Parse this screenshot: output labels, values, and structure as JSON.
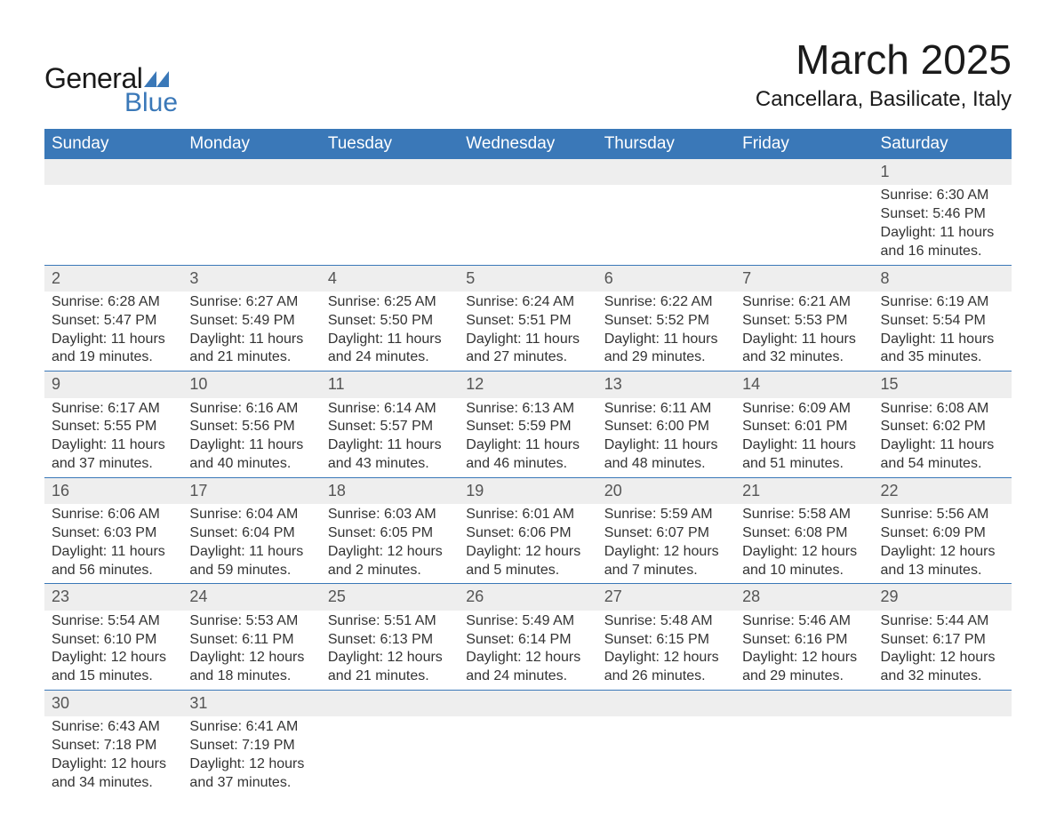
{
  "logo": {
    "general": "General",
    "blue": "Blue",
    "triangle_color": "#3a78b8"
  },
  "title": "March 2025",
  "location": "Cancellara, Basilicate, Italy",
  "colors": {
    "header_bg": "#3a78b8",
    "header_text": "#ffffff",
    "daynum_bg": "#eeeeee",
    "text": "#333333",
    "border": "#3a78b8"
  },
  "weekdays": [
    "Sunday",
    "Monday",
    "Tuesday",
    "Wednesday",
    "Thursday",
    "Friday",
    "Saturday"
  ],
  "weeks": [
    [
      null,
      null,
      null,
      null,
      null,
      null,
      {
        "n": "1",
        "sr": "Sunrise: 6:30 AM",
        "ss": "Sunset: 5:46 PM",
        "d1": "Daylight: 11 hours",
        "d2": "and 16 minutes."
      }
    ],
    [
      {
        "n": "2",
        "sr": "Sunrise: 6:28 AM",
        "ss": "Sunset: 5:47 PM",
        "d1": "Daylight: 11 hours",
        "d2": "and 19 minutes."
      },
      {
        "n": "3",
        "sr": "Sunrise: 6:27 AM",
        "ss": "Sunset: 5:49 PM",
        "d1": "Daylight: 11 hours",
        "d2": "and 21 minutes."
      },
      {
        "n": "4",
        "sr": "Sunrise: 6:25 AM",
        "ss": "Sunset: 5:50 PM",
        "d1": "Daylight: 11 hours",
        "d2": "and 24 minutes."
      },
      {
        "n": "5",
        "sr": "Sunrise: 6:24 AM",
        "ss": "Sunset: 5:51 PM",
        "d1": "Daylight: 11 hours",
        "d2": "and 27 minutes."
      },
      {
        "n": "6",
        "sr": "Sunrise: 6:22 AM",
        "ss": "Sunset: 5:52 PM",
        "d1": "Daylight: 11 hours",
        "d2": "and 29 minutes."
      },
      {
        "n": "7",
        "sr": "Sunrise: 6:21 AM",
        "ss": "Sunset: 5:53 PM",
        "d1": "Daylight: 11 hours",
        "d2": "and 32 minutes."
      },
      {
        "n": "8",
        "sr": "Sunrise: 6:19 AM",
        "ss": "Sunset: 5:54 PM",
        "d1": "Daylight: 11 hours",
        "d2": "and 35 minutes."
      }
    ],
    [
      {
        "n": "9",
        "sr": "Sunrise: 6:17 AM",
        "ss": "Sunset: 5:55 PM",
        "d1": "Daylight: 11 hours",
        "d2": "and 37 minutes."
      },
      {
        "n": "10",
        "sr": "Sunrise: 6:16 AM",
        "ss": "Sunset: 5:56 PM",
        "d1": "Daylight: 11 hours",
        "d2": "and 40 minutes."
      },
      {
        "n": "11",
        "sr": "Sunrise: 6:14 AM",
        "ss": "Sunset: 5:57 PM",
        "d1": "Daylight: 11 hours",
        "d2": "and 43 minutes."
      },
      {
        "n": "12",
        "sr": "Sunrise: 6:13 AM",
        "ss": "Sunset: 5:59 PM",
        "d1": "Daylight: 11 hours",
        "d2": "and 46 minutes."
      },
      {
        "n": "13",
        "sr": "Sunrise: 6:11 AM",
        "ss": "Sunset: 6:00 PM",
        "d1": "Daylight: 11 hours",
        "d2": "and 48 minutes."
      },
      {
        "n": "14",
        "sr": "Sunrise: 6:09 AM",
        "ss": "Sunset: 6:01 PM",
        "d1": "Daylight: 11 hours",
        "d2": "and 51 minutes."
      },
      {
        "n": "15",
        "sr": "Sunrise: 6:08 AM",
        "ss": "Sunset: 6:02 PM",
        "d1": "Daylight: 11 hours",
        "d2": "and 54 minutes."
      }
    ],
    [
      {
        "n": "16",
        "sr": "Sunrise: 6:06 AM",
        "ss": "Sunset: 6:03 PM",
        "d1": "Daylight: 11 hours",
        "d2": "and 56 minutes."
      },
      {
        "n": "17",
        "sr": "Sunrise: 6:04 AM",
        "ss": "Sunset: 6:04 PM",
        "d1": "Daylight: 11 hours",
        "d2": "and 59 minutes."
      },
      {
        "n": "18",
        "sr": "Sunrise: 6:03 AM",
        "ss": "Sunset: 6:05 PM",
        "d1": "Daylight: 12 hours",
        "d2": "and 2 minutes."
      },
      {
        "n": "19",
        "sr": "Sunrise: 6:01 AM",
        "ss": "Sunset: 6:06 PM",
        "d1": "Daylight: 12 hours",
        "d2": "and 5 minutes."
      },
      {
        "n": "20",
        "sr": "Sunrise: 5:59 AM",
        "ss": "Sunset: 6:07 PM",
        "d1": "Daylight: 12 hours",
        "d2": "and 7 minutes."
      },
      {
        "n": "21",
        "sr": "Sunrise: 5:58 AM",
        "ss": "Sunset: 6:08 PM",
        "d1": "Daylight: 12 hours",
        "d2": "and 10 minutes."
      },
      {
        "n": "22",
        "sr": "Sunrise: 5:56 AM",
        "ss": "Sunset: 6:09 PM",
        "d1": "Daylight: 12 hours",
        "d2": "and 13 minutes."
      }
    ],
    [
      {
        "n": "23",
        "sr": "Sunrise: 5:54 AM",
        "ss": "Sunset: 6:10 PM",
        "d1": "Daylight: 12 hours",
        "d2": "and 15 minutes."
      },
      {
        "n": "24",
        "sr": "Sunrise: 5:53 AM",
        "ss": "Sunset: 6:11 PM",
        "d1": "Daylight: 12 hours",
        "d2": "and 18 minutes."
      },
      {
        "n": "25",
        "sr": "Sunrise: 5:51 AM",
        "ss": "Sunset: 6:13 PM",
        "d1": "Daylight: 12 hours",
        "d2": "and 21 minutes."
      },
      {
        "n": "26",
        "sr": "Sunrise: 5:49 AM",
        "ss": "Sunset: 6:14 PM",
        "d1": "Daylight: 12 hours",
        "d2": "and 24 minutes."
      },
      {
        "n": "27",
        "sr": "Sunrise: 5:48 AM",
        "ss": "Sunset: 6:15 PM",
        "d1": "Daylight: 12 hours",
        "d2": "and 26 minutes."
      },
      {
        "n": "28",
        "sr": "Sunrise: 5:46 AM",
        "ss": "Sunset: 6:16 PM",
        "d1": "Daylight: 12 hours",
        "d2": "and 29 minutes."
      },
      {
        "n": "29",
        "sr": "Sunrise: 5:44 AM",
        "ss": "Sunset: 6:17 PM",
        "d1": "Daylight: 12 hours",
        "d2": "and 32 minutes."
      }
    ],
    [
      {
        "n": "30",
        "sr": "Sunrise: 6:43 AM",
        "ss": "Sunset: 7:18 PM",
        "d1": "Daylight: 12 hours",
        "d2": "and 34 minutes."
      },
      {
        "n": "31",
        "sr": "Sunrise: 6:41 AM",
        "ss": "Sunset: 7:19 PM",
        "d1": "Daylight: 12 hours",
        "d2": "and 37 minutes."
      },
      null,
      null,
      null,
      null,
      null
    ]
  ]
}
